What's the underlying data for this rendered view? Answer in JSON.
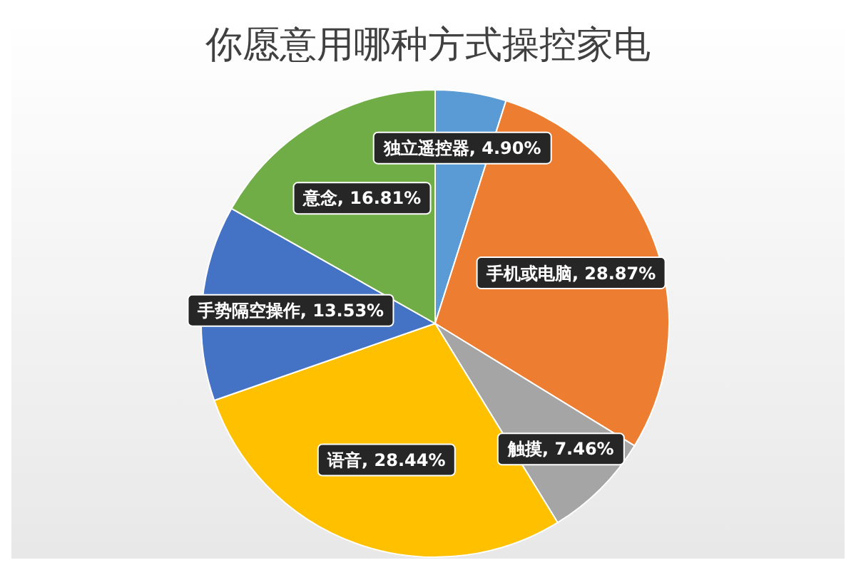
{
  "chart_data": {
    "type": "pie",
    "title": "你愿意用哪种方式操控家电",
    "categories": [
      "独立遥控器",
      "手机或电脑",
      "触摸",
      "语音",
      "手势隔空操作",
      "意念"
    ],
    "values": [
      4.9,
      28.87,
      7.46,
      28.44,
      13.53,
      16.81
    ],
    "colors": [
      "#5b9bd5",
      "#ed7d31",
      "#a5a5a5",
      "#ffc000",
      "#4472c4",
      "#70ad47"
    ],
    "data_labels": true,
    "value_labels": [
      "4.90%",
      "28.87%",
      "7.46%",
      "28.44%",
      "13.53%",
      "16.81%"
    ],
    "legend": false
  }
}
